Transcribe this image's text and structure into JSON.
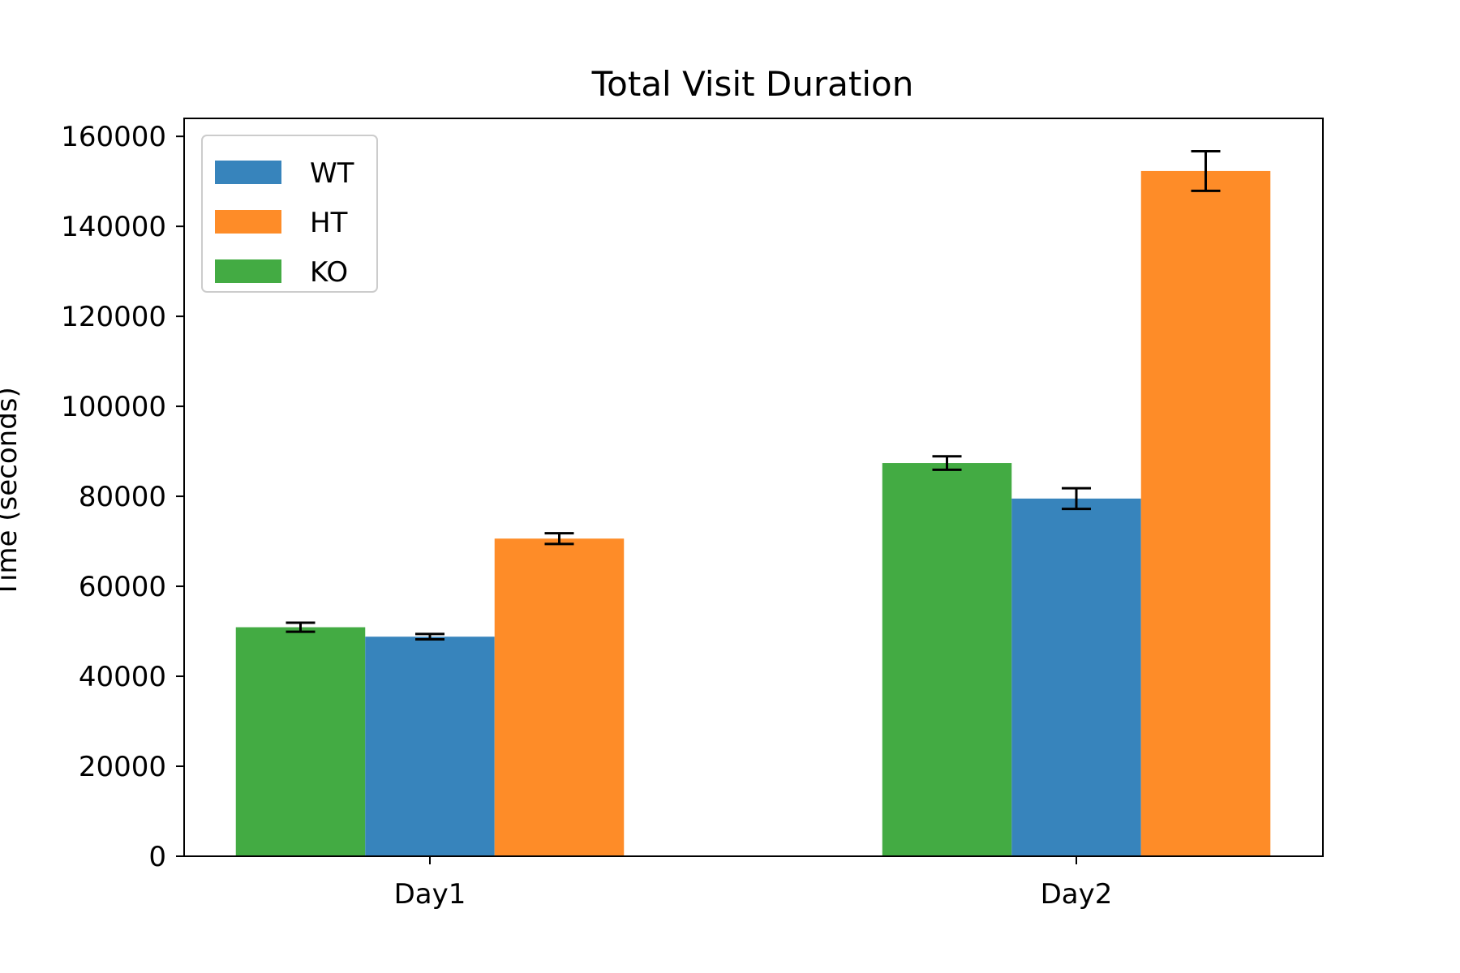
{
  "chart_data": {
    "type": "bar",
    "title": "Total Visit Duration",
    "xlabel": "",
    "ylabel": "Time (seconds)",
    "categories": [
      "Day1",
      "Day2"
    ],
    "ylim": [
      0,
      164000
    ],
    "yticks": [
      0,
      20000,
      40000,
      60000,
      80000,
      100000,
      120000,
      140000,
      160000
    ],
    "bar_order": [
      "KO",
      "WT",
      "HT"
    ],
    "series": [
      {
        "name": "WT",
        "color": "#3784bc",
        "values": [
          48800,
          79500
        ],
        "errors": [
          600,
          2300
        ]
      },
      {
        "name": "HT",
        "color": "#fe8c28",
        "values": [
          70600,
          152300
        ],
        "errors": [
          1200,
          4400
        ]
      },
      {
        "name": "KO",
        "color": "#43ab43",
        "values": [
          50900,
          87400
        ],
        "errors": [
          1000,
          1500
        ]
      }
    ],
    "legend": {
      "position": "top-left",
      "entries": [
        "WT",
        "HT",
        "KO"
      ]
    },
    "grid": false
  }
}
